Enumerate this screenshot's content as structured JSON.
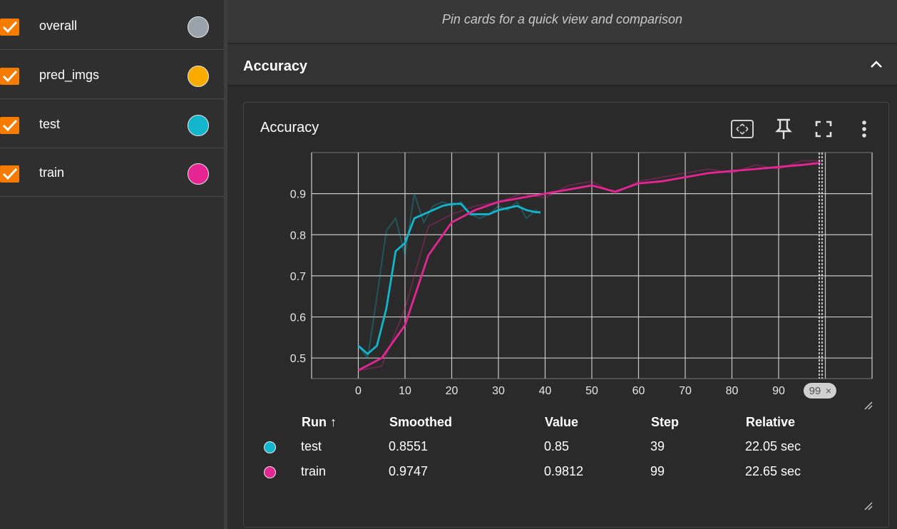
{
  "sidebar": {
    "runs": [
      {
        "name": "overall",
        "color": "#9aa3ab"
      },
      {
        "name": "pred_imgs",
        "color": "#f9ab00"
      },
      {
        "name": "test",
        "color": "#12b5cb"
      },
      {
        "name": "train",
        "color": "#e52592"
      }
    ]
  },
  "pin_banner": "Pin cards for a quick view and comparison",
  "group": {
    "title": "Accuracy"
  },
  "card": {
    "title": "Accuracy",
    "icons": [
      "fit-domain-icon",
      "pin-icon",
      "fullscreen-icon",
      "more-vert-icon"
    ]
  },
  "chart_data": {
    "type": "line",
    "title": "Accuracy",
    "x_ticks": [
      "0",
      "10",
      "20",
      "30",
      "40",
      "50",
      "60",
      "70",
      "80",
      "90"
    ],
    "y_ticks": [
      "0.5",
      "0.6",
      "0.7",
      "0.8",
      "0.9"
    ],
    "ylim": [
      0.45,
      1.0
    ],
    "xlim": [
      -10,
      110
    ],
    "grid": true,
    "cursor_step": "99",
    "series": [
      {
        "name": "test",
        "color": "#12b5cb",
        "x": [
          0,
          2,
          4,
          6,
          8,
          10,
          12,
          14,
          16,
          18,
          20,
          22,
          24,
          26,
          28,
          30,
          32,
          34,
          36,
          38,
          39
        ],
        "smoothed": [
          0.53,
          0.51,
          0.53,
          0.62,
          0.76,
          0.78,
          0.84,
          0.85,
          0.86,
          0.87,
          0.875,
          0.875,
          0.85,
          0.85,
          0.85,
          0.86,
          0.865,
          0.87,
          0.86,
          0.855,
          0.855
        ],
        "raw": [
          0.53,
          0.5,
          0.65,
          0.81,
          0.84,
          0.75,
          0.9,
          0.83,
          0.87,
          0.88,
          0.87,
          0.88,
          0.85,
          0.84,
          0.85,
          0.87,
          0.86,
          0.88,
          0.84,
          0.86,
          0.85
        ]
      },
      {
        "name": "train",
        "color": "#e52592",
        "x": [
          0,
          5,
          10,
          15,
          20,
          25,
          30,
          35,
          40,
          45,
          50,
          55,
          60,
          65,
          70,
          75,
          80,
          85,
          90,
          95,
          99
        ],
        "smoothed": [
          0.47,
          0.5,
          0.58,
          0.75,
          0.83,
          0.86,
          0.88,
          0.89,
          0.9,
          0.91,
          0.92,
          0.905,
          0.925,
          0.93,
          0.94,
          0.95,
          0.955,
          0.96,
          0.965,
          0.97,
          0.975
        ],
        "raw": [
          0.47,
          0.48,
          0.62,
          0.82,
          0.85,
          0.87,
          0.88,
          0.9,
          0.89,
          0.92,
          0.93,
          0.9,
          0.93,
          0.94,
          0.95,
          0.96,
          0.95,
          0.97,
          0.96,
          0.98,
          0.98
        ]
      }
    ]
  },
  "table": {
    "headers": {
      "run": "Run ↑",
      "smoothed": "Smoothed",
      "value": "Value",
      "step": "Step",
      "relative": "Relative"
    },
    "rows": [
      {
        "color": "#12b5cb",
        "run": "test",
        "smoothed": "0.8551",
        "value": "0.85",
        "step": "39",
        "relative": "22.05 sec"
      },
      {
        "color": "#e52592",
        "run": "train",
        "smoothed": "0.9747",
        "value": "0.9812",
        "step": "99",
        "relative": "22.65 sec"
      }
    ]
  }
}
